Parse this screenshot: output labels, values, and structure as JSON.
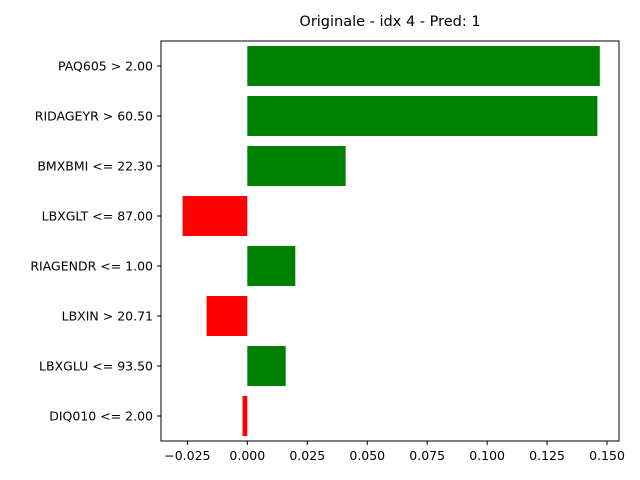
{
  "chart_data": {
    "type": "bar",
    "orientation": "horizontal",
    "title": "Originale - idx 4 - Pred: 1",
    "xlabel": "",
    "ylabel": "",
    "categories": [
      "PAQ605 > 2.00",
      "RIDAGEYR > 60.50",
      "BMXBMI <= 22.30",
      "LBXGLT <= 87.00",
      "RIAGENDR <= 1.00",
      "LBXIN > 20.71",
      "LBXGLU <= 93.50",
      "DIQ010 <= 2.00"
    ],
    "values": [
      0.147,
      0.146,
      0.041,
      -0.027,
      0.02,
      -0.017,
      0.016,
      -0.002
    ],
    "xlim": [
      -0.036,
      0.155
    ],
    "xticks": [
      -0.025,
      0.0,
      0.025,
      0.05,
      0.075,
      0.1,
      0.125,
      0.15
    ],
    "xtick_labels": [
      "−0.025",
      "0.000",
      "0.025",
      "0.050",
      "0.075",
      "0.100",
      "0.125",
      "0.150"
    ],
    "colors": {
      "positive": "#008000",
      "negative": "#ff0000"
    },
    "grid": false,
    "legend": "none"
  }
}
